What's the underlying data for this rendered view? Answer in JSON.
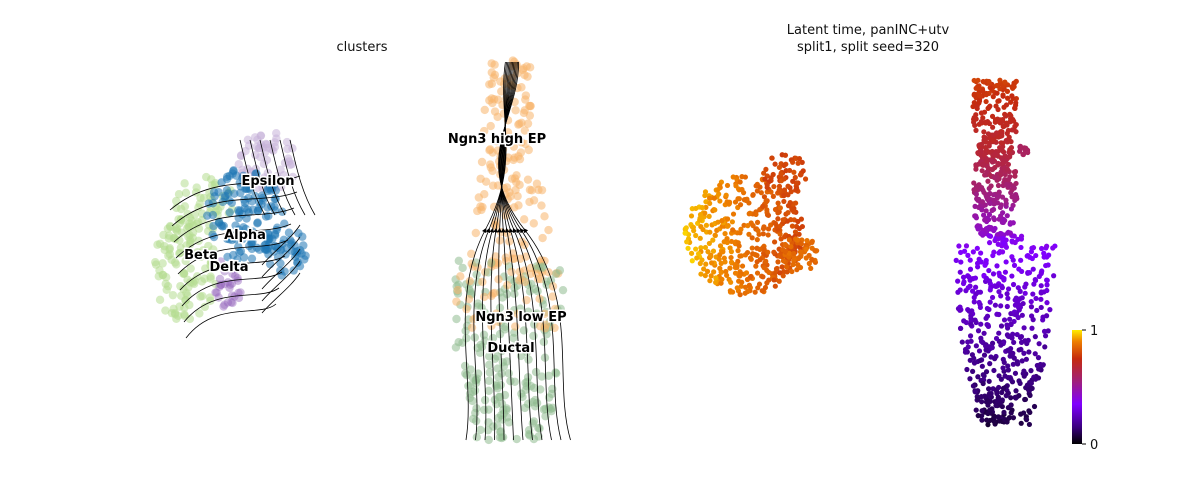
{
  "left_panel": {
    "title": "clusters"
  },
  "right_panel": {
    "title_line1": "Latent time, panINC+utv",
    "title_line2": "split1, split seed=320"
  },
  "chart_data": [
    {
      "type": "scatter",
      "title": "clusters",
      "subtype": "UMAP embedding with RNA velocity streamlines",
      "grid": false,
      "axes_visible": false,
      "clusters": [
        {
          "name": "Ngn3 high EP",
          "color": "#f7b56c"
        },
        {
          "name": "Ngn3 low EP",
          "color": "#f2b27a"
        },
        {
          "name": "Ductal",
          "color": "#8fbc8f"
        },
        {
          "name": "Beta",
          "color": "#b5dd8f"
        },
        {
          "name": "Alpha",
          "color": "#1f77b4"
        },
        {
          "name": "Delta",
          "color": "#9467bd"
        },
        {
          "name": "Epsilon",
          "color": "#c7b3d9"
        }
      ],
      "labels": [
        "Epsilon",
        "Alpha",
        "Beta",
        "Delta",
        "Ngn3 high EP",
        "Ngn3 low EP",
        "Ductal"
      ]
    },
    {
      "type": "scatter",
      "title": "Latent time, panINC+utv\nsplit1, split seed=320",
      "subtype": "UMAP embedding colored by latent time",
      "grid": false,
      "axes_visible": false,
      "colormap": "gnuplot",
      "colorbar": {
        "min": 0,
        "max": 1,
        "ticks": [
          "0",
          "1"
        ]
      }
    }
  ],
  "colors": {
    "ngn3_high": "#f7b56c",
    "ductal": "#8fbc8f",
    "beta": "#b5dd8f",
    "alpha": "#1f77b4",
    "delta": "#9467bd",
    "epsilon": "#c7b3d9"
  }
}
